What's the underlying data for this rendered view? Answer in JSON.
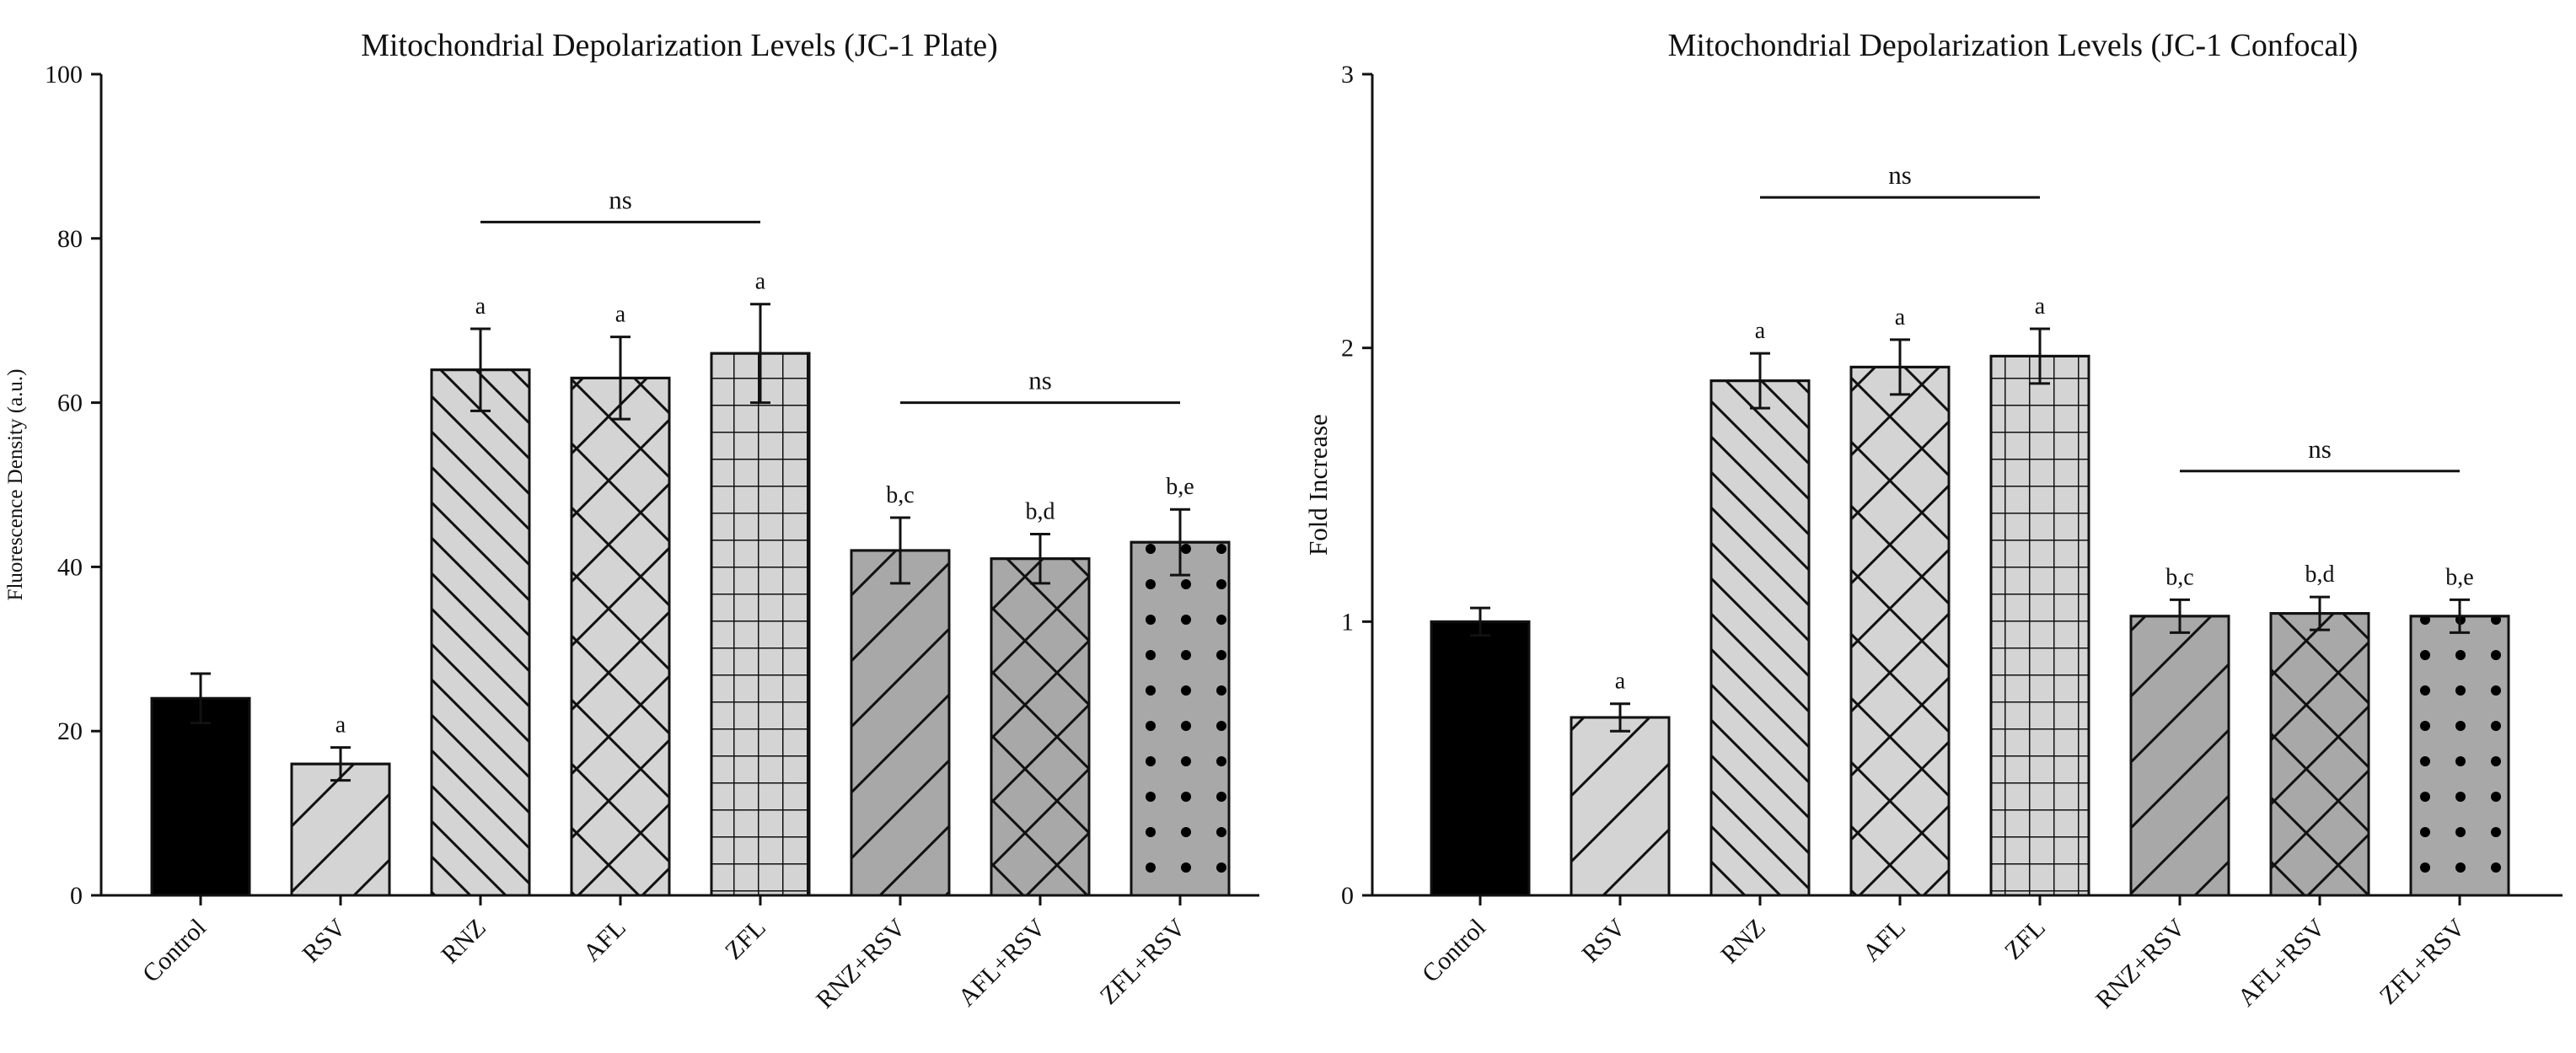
{
  "chart_data": [
    {
      "type": "bar",
      "title": "Mitochondrial Depolarization Levels (JC-1 Plate)",
      "xlabel": "",
      "ylabel": "Fluorescence Density (a.u.)",
      "ylim": [
        0,
        100
      ],
      "yticks": [
        0,
        20,
        40,
        60,
        80,
        100
      ],
      "grid": false,
      "categories": [
        "Control",
        "RSV",
        "RNZ",
        "AFL",
        "ZFL",
        "RNZ+RSV",
        "AFL+RSV",
        "ZFL+RSV"
      ],
      "values": [
        24,
        16,
        64,
        63,
        66,
        42,
        41,
        43
      ],
      "errors": [
        3,
        2,
        5,
        5,
        6,
        4,
        3,
        4
      ],
      "significance": [
        "",
        "a",
        "a",
        "a",
        "a",
        "b,c",
        "b,d",
        "b,e"
      ],
      "brackets": [
        {
          "from": 2,
          "to": 4,
          "level": 82,
          "label": "ns"
        },
        {
          "from": 5,
          "to": 7,
          "level": 60,
          "label": "ns"
        }
      ],
      "fill_colors": [
        "#000000",
        "#d4d4d4",
        "#d4d4d4",
        "#d4d4d4",
        "#d4d4d4",
        "#a8a8a8",
        "#a8a8a8",
        "#a8a8a8"
      ],
      "patterns": [
        "solid",
        "diagonal-up",
        "diagonal-down",
        "crosshatch",
        "grid",
        "diagonal-up",
        "crosshatch",
        "dots"
      ]
    },
    {
      "type": "bar",
      "title": "Mitochondrial Depolarization Levels (JC-1 Confocal)",
      "xlabel": "",
      "ylabel": "Fold Increase",
      "ylim": [
        0,
        3
      ],
      "yticks": [
        0,
        1,
        2,
        3
      ],
      "grid": false,
      "categories": [
        "Control",
        "RSV",
        "RNZ",
        "AFL",
        "ZFL",
        "RNZ+RSV",
        "AFL+RSV",
        "ZFL+RSV"
      ],
      "values": [
        1.0,
        0.65,
        1.88,
        1.93,
        1.97,
        1.02,
        1.03,
        1.02
      ],
      "errors": [
        0.05,
        0.05,
        0.1,
        0.1,
        0.1,
        0.06,
        0.06,
        0.06
      ],
      "significance": [
        "",
        "a",
        "a",
        "a",
        "a",
        "b,c",
        "b,d",
        "b,e"
      ],
      "brackets": [
        {
          "from": 2,
          "to": 4,
          "level": 2.55,
          "label": "ns"
        },
        {
          "from": 5,
          "to": 7,
          "level": 1.55,
          "label": "ns"
        }
      ],
      "fill_colors": [
        "#000000",
        "#d4d4d4",
        "#d4d4d4",
        "#d4d4d4",
        "#d4d4d4",
        "#a8a8a8",
        "#a8a8a8",
        "#a8a8a8"
      ],
      "patterns": [
        "solid",
        "diagonal-up",
        "diagonal-down",
        "crosshatch",
        "grid",
        "diagonal-up",
        "crosshatch",
        "dots"
      ]
    }
  ]
}
